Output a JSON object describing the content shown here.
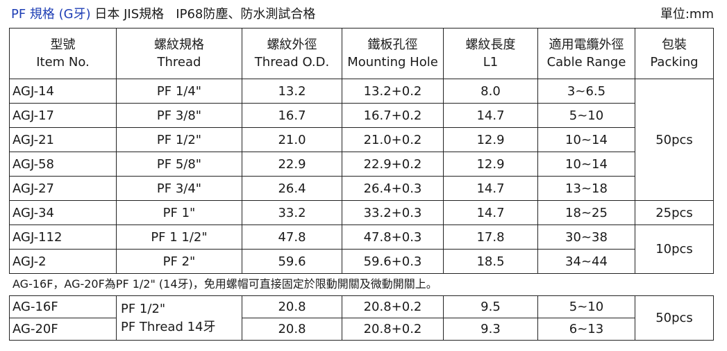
{
  "title": {
    "prefix": "PF 規格 (G牙)",
    "rest": " 日本 JIS規格   IP68防塵、防水測試合格",
    "unit": "單位:mm"
  },
  "columns": [
    {
      "zh": "型號",
      "en": "Item No."
    },
    {
      "zh": "螺紋規格",
      "en": "Thread"
    },
    {
      "zh": "螺紋外徑",
      "en": "Thread O.D."
    },
    {
      "zh": "鐵板孔徑",
      "en": "Mounting Hole"
    },
    {
      "zh": "螺紋長度",
      "en": "L1"
    },
    {
      "zh": "適用電纜外徑",
      "en": "Cable Range"
    },
    {
      "zh": "包裝",
      "en": "Packing"
    }
  ],
  "rows": [
    {
      "item": "AGJ-14",
      "thread": "PF 1/4\"",
      "od": "13.2",
      "hole": "13.2+0.2",
      "l1": "8.0",
      "cable": "3~6.5"
    },
    {
      "item": "AGJ-17",
      "thread": "PF 3/8\"",
      "od": "16.7",
      "hole": "16.7+0.2",
      "l1": "14.7",
      "cable": "5~10"
    },
    {
      "item": "AGJ-21",
      "thread": "PF 1/2\"",
      "od": "21.0",
      "hole": "21.0+0.2",
      "l1": "12.9",
      "cable": "10~14"
    },
    {
      "item": "AGJ-58",
      "thread": "PF 5/8\"",
      "od": "22.9",
      "hole": "22.9+0.2",
      "l1": "12.9",
      "cable": "10~14"
    },
    {
      "item": "AGJ-27",
      "thread": "PF 3/4\"",
      "od": "26.4",
      "hole": "26.4+0.3",
      "l1": "14.7",
      "cable": "13~18"
    },
    {
      "item": "AGJ-34",
      "thread": "PF 1\"",
      "od": "33.2",
      "hole": "33.2+0.3",
      "l1": "14.7",
      "cable": "18~25"
    },
    {
      "item": "AGJ-112",
      "thread": "PF 1 1/2\"",
      "od": "47.8",
      "hole": "47.8+0.3",
      "l1": "17.8",
      "cable": "30~38"
    },
    {
      "item": "AGJ-2",
      "thread": "PF 2\"",
      "od": "59.6",
      "hole": "59.6+0.3",
      "l1": "18.5",
      "cable": "34~44"
    }
  ],
  "packing": {
    "group1": "50pcs",
    "group2": "25pcs",
    "group3": "10pcs"
  },
  "note": "AG-16F，AG-20F為PF 1/2\" (14牙)，免用螺帽可直接固定於限動開關及微動開關上。",
  "extra": {
    "thread_line1": "PF 1/2\"",
    "thread_line2": "PF Thread 14牙",
    "packing": "50pcs",
    "rows": [
      {
        "item": "AG-16F",
        "od": "20.8",
        "hole": "20.8+0.2",
        "l1": "9.5",
        "cable": "5~10"
      },
      {
        "item": "AG-20F",
        "od": "20.8",
        "hole": "20.8+0.2",
        "l1": "9.3",
        "cable": "6~13"
      }
    ]
  }
}
